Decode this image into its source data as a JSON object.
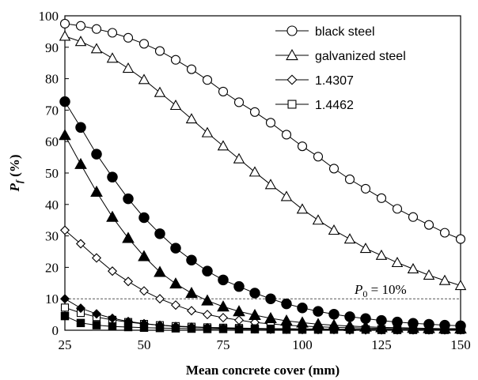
{
  "chart_data": {
    "type": "scatter",
    "title": "",
    "xlabel": "Mean concrete cover (mm)",
    "ylabel_main": "P",
    "ylabel_sub": "f",
    "ylabel_rest": " (%)",
    "xlim": [
      25,
      150
    ],
    "ylim": [
      0,
      100
    ],
    "x_ticks": [
      25,
      50,
      75,
      100,
      125,
      150
    ],
    "y_ticks": [
      0,
      10,
      20,
      30,
      40,
      50,
      60,
      70,
      80,
      90,
      100
    ],
    "grid": false,
    "legend_position": "top-right",
    "x": [
      25,
      30,
      35,
      40,
      45,
      50,
      55,
      60,
      65,
      70,
      75,
      80,
      85,
      90,
      95,
      100,
      105,
      110,
      115,
      120,
      125,
      130,
      135,
      140,
      145,
      150
    ],
    "series": [
      {
        "name": "black steel",
        "marker": "circle",
        "fill": "open",
        "values": [
          97.5,
          96.8,
          95.8,
          94.6,
          93.0,
          91.1,
          88.8,
          86.0,
          83.0,
          79.6,
          75.9,
          72.5,
          69.4,
          66.0,
          62.2,
          58.5,
          55.2,
          51.4,
          48.0,
          45.0,
          42.0,
          38.6,
          36.0,
          33.5,
          31.0,
          29.0
        ]
      },
      {
        "name": "galvanized steel",
        "marker": "triangle",
        "fill": "open",
        "values": [
          93.5,
          91.8,
          89.5,
          86.5,
          83.3,
          79.7,
          75.6,
          71.5,
          67.2,
          62.8,
          58.6,
          54.5,
          50.3,
          46.3,
          42.5,
          38.5,
          35.0,
          31.8,
          29.0,
          26.0,
          23.8,
          21.5,
          19.5,
          17.5,
          15.8,
          14.2
        ]
      },
      {
        "name": "1.4307",
        "marker": "diamond",
        "fill": "open",
        "values": [
          31.8,
          27.5,
          23.0,
          18.8,
          15.5,
          12.5,
          10.0,
          8.0,
          6.2,
          5.0,
          4.0,
          3.2,
          2.5,
          2.0,
          1.6,
          1.3,
          1.1,
          0.9,
          0.8,
          0.7,
          0.6,
          0.5,
          0.5,
          0.4,
          0.4,
          0.3
        ]
      },
      {
        "name": "1.4462",
        "marker": "square",
        "fill": "open",
        "values": [
          7.2,
          5.5,
          4.2,
          3.3,
          2.6,
          2.0,
          1.6,
          1.3,
          1.1,
          0.9,
          0.8,
          0.7,
          0.6,
          0.5,
          0.5,
          0.4,
          0.4,
          0.3,
          0.3,
          0.3,
          0.3,
          0.2,
          0.2,
          0.2,
          0.2,
          0.2
        ]
      },
      {
        "marker": "circle",
        "fill": "filled",
        "values": [
          72.7,
          64.5,
          56.0,
          48.7,
          41.8,
          35.8,
          30.7,
          26.1,
          22.3,
          18.8,
          16.0,
          13.9,
          11.8,
          10.0,
          8.4,
          7.1,
          6.0,
          5.1,
          4.3,
          3.7,
          3.1,
          2.6,
          2.2,
          1.9,
          1.6,
          1.4
        ]
      },
      {
        "marker": "triangle",
        "fill": "filled",
        "values": [
          62.0,
          52.8,
          44.0,
          36.0,
          29.3,
          23.5,
          18.5,
          14.8,
          11.8,
          9.4,
          7.5,
          6.0,
          4.8,
          3.8,
          3.0,
          2.4,
          1.9,
          1.6,
          1.3,
          1.1,
          0.9,
          0.8,
          0.7,
          0.6,
          0.5,
          0.5
        ]
      },
      {
        "marker": "diamond",
        "fill": "filled",
        "values": [
          10.0,
          7.0,
          5.2,
          3.8,
          2.8,
          2.1,
          1.6,
          1.2,
          1.0,
          0.8,
          0.6,
          0.5,
          0.4,
          0.3,
          0.3,
          0.2,
          0.2,
          0.2,
          0.1,
          0.1,
          0.1,
          0.1,
          0.1,
          0.1,
          0.1,
          0.1
        ]
      },
      {
        "marker": "square",
        "fill": "filled",
        "values": [
          4.5,
          2.3,
          1.6,
          1.2,
          1.0,
          0.8,
          0.7,
          0.6,
          0.5,
          0.4,
          0.4,
          0.3,
          0.3,
          0.3,
          0.2,
          0.2,
          0.2,
          0.2,
          0.2,
          0.2,
          0.1,
          0.1,
          0.1,
          0.1,
          0.1,
          0.1
        ]
      }
    ],
    "reference_line": {
      "y": 10,
      "style": "dashed",
      "label_main": "P",
      "label_sub": "0",
      "label_rest": " = 10%"
    }
  }
}
